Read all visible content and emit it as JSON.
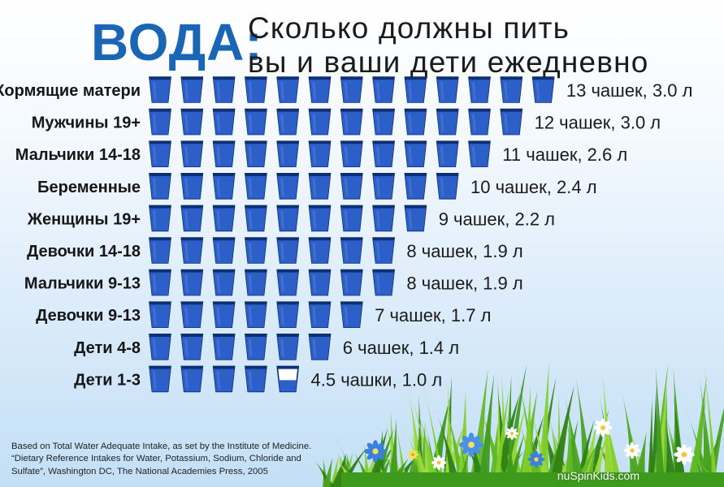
{
  "header": {
    "brand": "ВОДА:",
    "subtitle_line1": "Сколько должны пить",
    "subtitle_line2": "вы и ваши дети ежедневно"
  },
  "chart_data": {
    "type": "bar",
    "title": "Сколько должны пить вы и ваши дети ежедневно",
    "unit": "чашки",
    "categories": [
      "Кормящие матери",
      "Мужчины 19+",
      "Мальчики 14-18",
      "Беременные",
      "Женщины 19+",
      "Девочки 14-18",
      "Мальчики 9-13",
      "Девочки 9-13",
      "Дети 4-8",
      "Дети 1-3"
    ],
    "values": [
      13,
      12,
      11,
      10,
      9,
      8,
      8,
      7,
      6,
      4.5
    ],
    "liters": [
      3.0,
      3.0,
      2.6,
      2.4,
      2.2,
      1.9,
      1.9,
      1.7,
      1.4,
      1.0
    ],
    "value_labels": [
      "13 чашек, 3.0 л",
      "12 чашек, 3.0 л",
      "11 чашек, 2.6 л",
      "10 чашек, 2.4 л",
      "9 чашек, 2.2 л",
      "8 чашек, 1.9 л",
      "8 чашек, 1.9 л",
      "7 чашек, 1.7 л",
      "6 чашек, 1.4 л",
      "4.5 чашки, 1.0 л"
    ],
    "colors": {
      "water": "#2d5fc8",
      "water_dark": "#1c47a3",
      "cup_rim": "#0f2f73",
      "empty_cup": "#ffffff"
    }
  },
  "footnote": {
    "line1": "Based on Total Water Adequate Intake, as set by the Institute of Medicine.",
    "line2": "“Dietary Reference Intakes for Water, Potassium, Sodium, Chloride and",
    "line3": "Sulfate”, Washington DC, The National Academies Press, 2005"
  },
  "watermark": "nuSpinKids.com",
  "decoration": {
    "grass": "grass-illustration",
    "flowers": "flower-icon"
  }
}
